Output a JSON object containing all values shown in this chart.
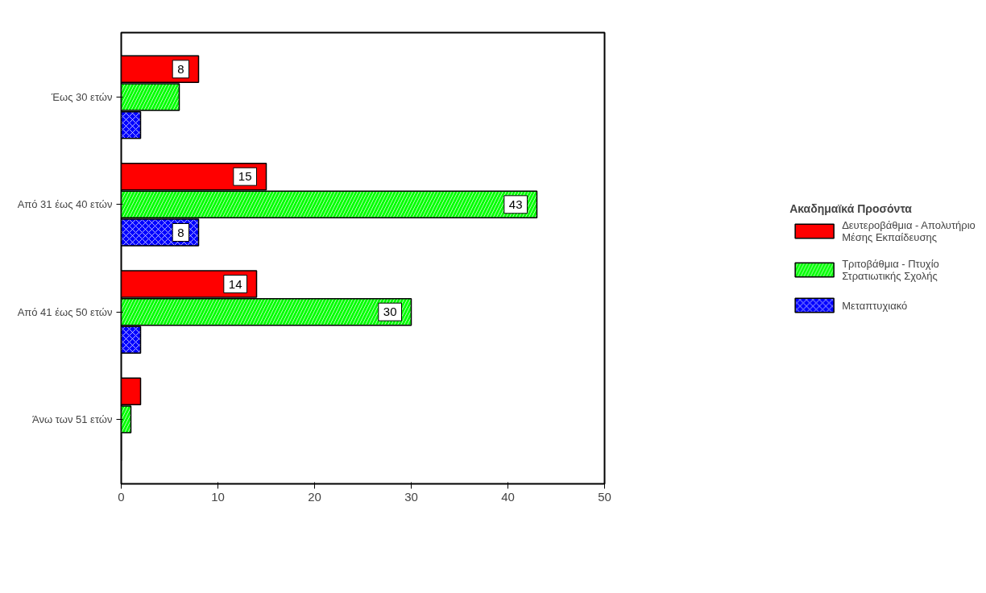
{
  "chart_data": {
    "type": "bar",
    "orientation": "horizontal",
    "legend_title": "Ακαδημαϊκά Προσόντα",
    "legend": "right",
    "grid": false,
    "categories": [
      "Έως 30 ετών",
      "Από 31 έως 40 ετών",
      "Από 41 έως 50 ετών",
      "Άνω των 51 ετών"
    ],
    "xlim": [
      0,
      50
    ],
    "xticks": [
      0,
      10,
      20,
      30,
      40,
      50
    ],
    "series": [
      {
        "name": "Δευτεροβάθμια - Απολυτήριο Μέσης Εκπαίδευσης",
        "color": "#ff0000",
        "values": [
          8,
          15,
          14,
          2
        ],
        "value_labels": [
          "8",
          "15",
          "14",
          null
        ]
      },
      {
        "name": "Τριτοβάθμια - Πτυχίο Στρατιωτικής Σχολής",
        "color": "#00ff00",
        "values": [
          6,
          43,
          30,
          1
        ],
        "value_labels": [
          null,
          "43",
          "30",
          null
        ]
      },
      {
        "name": "Μεταπτυχιακό",
        "color": "#0000ff",
        "values": [
          2,
          8,
          2,
          null
        ],
        "value_labels": [
          null,
          "8",
          null,
          null
        ]
      }
    ]
  }
}
